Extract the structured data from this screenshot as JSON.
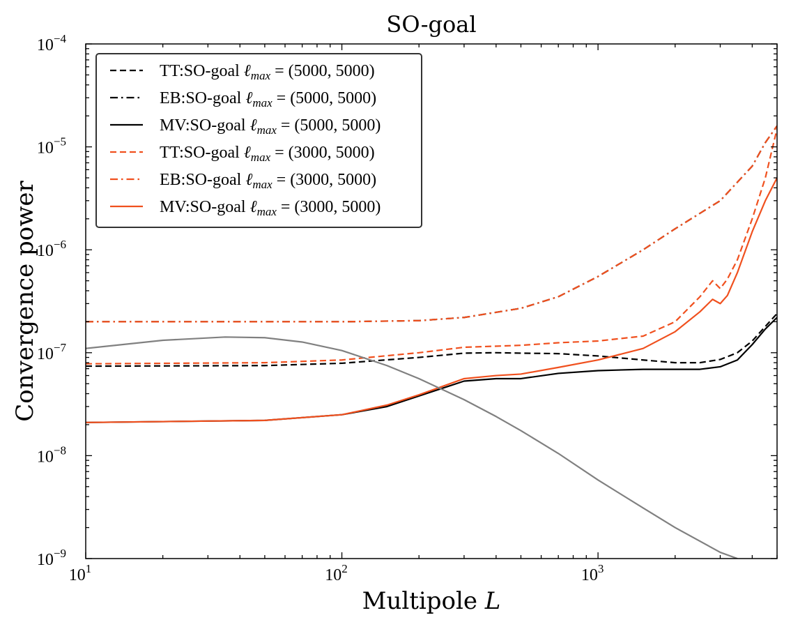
{
  "chart_data": {
    "type": "line",
    "title": "SO-goal",
    "xlabel": "Multipole L",
    "ylabel": "Convergence power",
    "xscale": "log",
    "yscale": "log",
    "xlim": [
      10,
      5000
    ],
    "ylim": [
      1e-09,
      0.0001
    ],
    "grid": false,
    "legend_position": "upper-left",
    "x_ticks": [
      {
        "value": 10,
        "base": "10",
        "exp": "1"
      },
      {
        "value": 100,
        "base": "10",
        "exp": "2"
      },
      {
        "value": 1000,
        "base": "10",
        "exp": "3"
      }
    ],
    "y_ticks": [
      {
        "value": 1e-09,
        "base": "10",
        "exp": "−9"
      },
      {
        "value": 1e-08,
        "base": "10",
        "exp": "−8"
      },
      {
        "value": 1e-07,
        "base": "10",
        "exp": "−7"
      },
      {
        "value": 1e-06,
        "base": "10",
        "exp": "−6"
      },
      {
        "value": 1e-05,
        "base": "10",
        "exp": "−5"
      },
      {
        "value": 0.0001,
        "base": "10",
        "exp": "−4"
      }
    ],
    "series": [
      {
        "name": "TT:SO-goal ℓmax = (5000, 5000)",
        "legend": {
          "prefix": "TT:SO-goal ",
          "sub": "max",
          "suffix": " = (5000, 5000)"
        },
        "color": "#000000",
        "style": "dashed",
        "x": [
          10,
          50,
          100,
          200,
          300,
          400,
          500,
          700,
          1000,
          1500,
          2000,
          2500,
          3000,
          3500,
          4000,
          4500,
          5000
        ],
        "y": [
          7.4e-08,
          7.5e-08,
          7.9e-08,
          9e-08,
          9.9e-08,
          1e-07,
          9.9e-08,
          9.8e-08,
          9.3e-08,
          8.5e-08,
          8e-08,
          8e-08,
          8.6e-08,
          1e-07,
          1.3e-07,
          1.8e-07,
          2.4e-07
        ]
      },
      {
        "name": "EB:SO-goal ℓmax = (5000, 5000)",
        "legend": {
          "prefix": "EB:SO-goal ",
          "sub": "max",
          "suffix": " = (5000, 5000)"
        },
        "color": "#000000",
        "style": "dashdot",
        "x": [
          10,
          50,
          100,
          200,
          300,
          500,
          700,
          1000,
          1500,
          2000,
          3000,
          4000,
          4500,
          5000
        ],
        "y": [
          2e-07,
          2e-07,
          2e-07,
          2.05e-07,
          2.2e-07,
          2.7e-07,
          3.5e-07,
          5.5e-07,
          1e-06,
          1.6e-06,
          3e-06,
          6.5e-06,
          1.1e-05,
          1.6e-05
        ]
      },
      {
        "name": "MV:SO-goal ℓmax = (5000, 5000)",
        "legend": {
          "prefix": "MV:SO-goal ",
          "sub": "max",
          "suffix": " = (5000, 5000)"
        },
        "color": "#000000",
        "style": "solid",
        "x": [
          10,
          50,
          100,
          150,
          200,
          300,
          400,
          500,
          700,
          1000,
          1500,
          2000,
          2500,
          3000,
          3500,
          4000,
          4500,
          5000
        ],
        "y": [
          2.1e-08,
          2.2e-08,
          2.5e-08,
          3e-08,
          3.8e-08,
          5.3e-08,
          5.6e-08,
          5.6e-08,
          6.3e-08,
          6.7e-08,
          6.9e-08,
          6.9e-08,
          6.9e-08,
          7.3e-08,
          8.5e-08,
          1.2e-07,
          1.7e-07,
          2.2e-07
        ]
      },
      {
        "name": "TT:SO-goal ℓmax = (3000, 5000)",
        "legend": {
          "prefix": "TT:SO-goal ",
          "sub": "max",
          "suffix": " = (3000, 5000)"
        },
        "color": "#f0501e",
        "style": "dashed",
        "x": [
          10,
          50,
          100,
          200,
          300,
          500,
          700,
          1000,
          1500,
          2000,
          2500,
          2800,
          3000,
          3200,
          3500,
          4000,
          4500,
          5000
        ],
        "y": [
          7.8e-08,
          8e-08,
          8.5e-08,
          1e-07,
          1.13e-07,
          1.18e-07,
          1.25e-07,
          1.3e-07,
          1.45e-07,
          2e-07,
          3.5e-07,
          5e-07,
          4.2e-07,
          5.2e-07,
          8e-07,
          2e-06,
          5e-06,
          1.5e-05
        ]
      },
      {
        "name": "EB:SO-goal ℓmax = (3000, 5000)",
        "legend": {
          "prefix": "EB:SO-goal ",
          "sub": "max",
          "suffix": " = (3000, 5000)"
        },
        "color": "#f0501e",
        "style": "dashdot",
        "x": [
          10,
          50,
          100,
          200,
          300,
          500,
          700,
          1000,
          1500,
          2000,
          3000,
          4000,
          4500,
          5000
        ],
        "y": [
          2e-07,
          2e-07,
          2e-07,
          2.05e-07,
          2.2e-07,
          2.7e-07,
          3.5e-07,
          5.5e-07,
          1e-06,
          1.6e-06,
          3e-06,
          6.5e-06,
          1.1e-05,
          1.6e-05
        ]
      },
      {
        "name": "MV:SO-goal ℓmax = (3000, 5000)",
        "legend": {
          "prefix": "MV:SO-goal ",
          "sub": "max",
          "suffix": " = (3000, 5000)"
        },
        "color": "#f0501e",
        "style": "solid",
        "x": [
          10,
          50,
          100,
          150,
          200,
          300,
          400,
          500,
          700,
          1000,
          1500,
          2000,
          2500,
          2800,
          3000,
          3200,
          3500,
          4000,
          4500,
          5000
        ],
        "y": [
          2.1e-08,
          2.2e-08,
          2.5e-08,
          3.1e-08,
          3.9e-08,
          5.6e-08,
          6e-08,
          6.2e-08,
          7.2e-08,
          8.5e-08,
          1.1e-07,
          1.6e-07,
          2.5e-07,
          3.3e-07,
          3e-07,
          3.6e-07,
          6e-07,
          1.5e-06,
          3e-06,
          5e-06
        ]
      },
      {
        "name": "",
        "color": "#808080",
        "style": "solid",
        "x": [
          10,
          20,
          35,
          50,
          70,
          100,
          150,
          200,
          300,
          400,
          500,
          700,
          1000,
          1500,
          2000,
          3000,
          3500
        ],
        "y": [
          1.1e-07,
          1.32e-07,
          1.42e-07,
          1.4e-07,
          1.27e-07,
          1.05e-07,
          7.5e-08,
          5.6e-08,
          3.5e-08,
          2.4e-08,
          1.75e-08,
          1.05e-08,
          5.8e-09,
          3.1e-09,
          2e-09,
          1.15e-09,
          1e-09
        ]
      }
    ]
  }
}
